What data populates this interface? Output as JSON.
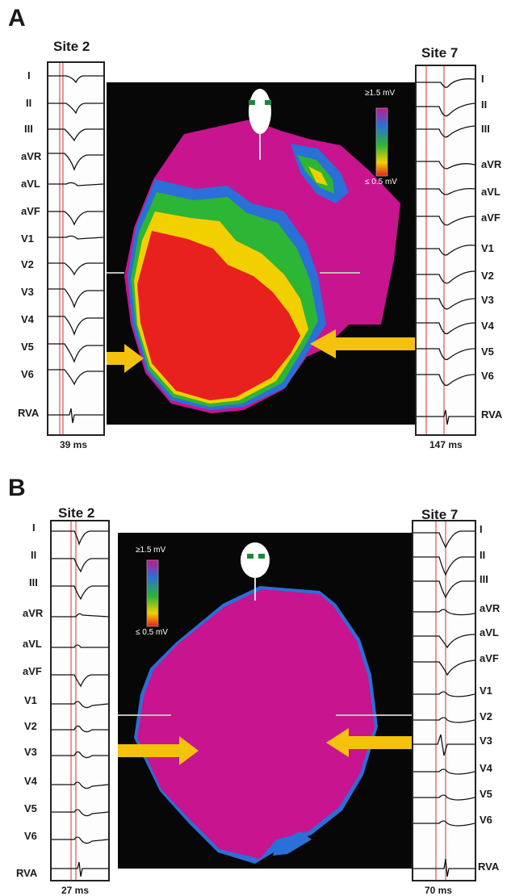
{
  "panels": [
    {
      "letter": "A",
      "left_site": "Site 2",
      "right_site": "Site 7",
      "left_time": "39 ms",
      "right_time": "147 ms",
      "colorbar": {
        "max_label": "≥1.5 mV",
        "min_label": "≤ 0.5 mV"
      }
    },
    {
      "letter": "B",
      "left_site": "Site 2",
      "right_site": "Site 7",
      "left_time": "27 ms",
      "right_time": "70 ms",
      "colorbar": {
        "max_label": "≥1.5 mV",
        "min_label": "≤ 0.5 mV"
      }
    }
  ],
  "leads": [
    "I",
    "II",
    "III",
    "aVR",
    "aVL",
    "aVF",
    "V1",
    "V2",
    "V3",
    "V4",
    "V5",
    "V6",
    "RVA"
  ],
  "colors": {
    "scar_red": "#e8201e",
    "healthy_magenta": "#c8148f",
    "border_yellow": "#f2d000",
    "border_green": "#2db535",
    "border_blue": "#2b6fd8",
    "arrow_yellow": "#f4c20d",
    "marker_line": "#e76a6a"
  }
}
